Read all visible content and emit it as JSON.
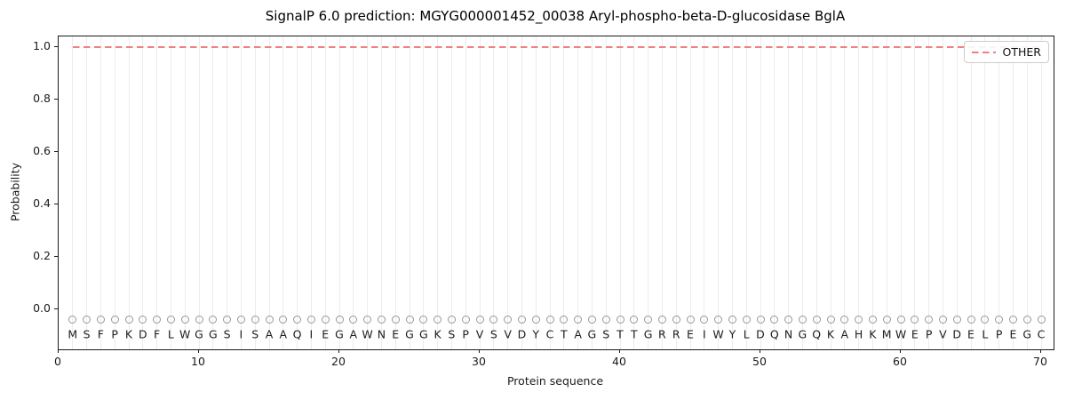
{
  "chart_data": {
    "type": "line",
    "title": "SignalP 6.0 prediction: MGYG000001452_00038 Aryl-phospho-beta-D-glucosidase BglA",
    "xlabel": "Protein sequence",
    "ylabel": "Probability",
    "xlim": [
      0,
      70.9
    ],
    "ylim": [
      -0.15,
      1.04
    ],
    "x_ticks": [
      {
        "v": 0,
        "label": "0"
      },
      {
        "v": 10,
        "label": "10"
      },
      {
        "v": 20,
        "label": "20"
      },
      {
        "v": 30,
        "label": "30"
      },
      {
        "v": 40,
        "label": "40"
      },
      {
        "v": 50,
        "label": "50"
      },
      {
        "v": 60,
        "label": "60"
      },
      {
        "v": 70,
        "label": "70"
      }
    ],
    "y_ticks": [
      {
        "v": 0.0,
        "label": "0.0"
      },
      {
        "v": 0.2,
        "label": "0.2"
      },
      {
        "v": 0.4,
        "label": "0.4"
      },
      {
        "v": 0.6,
        "label": "0.6"
      },
      {
        "v": 0.8,
        "label": "0.8"
      },
      {
        "v": 1.0,
        "label": "1.0"
      }
    ],
    "grid": {
      "vertical_line_per_residue": true,
      "color": "#ececec"
    },
    "sequence": "MSFPKDFLWGGSISAAQIEGAWNEGGKSPVSVDYCTAGSTTGRREIWYLDQNGQKAHKMWEPVDELPEGC",
    "series": [
      {
        "name": "OTHER",
        "color": "#f08080",
        "linestyle": "dashed",
        "x": [
          1,
          2,
          3,
          4,
          5,
          6,
          7,
          8,
          9,
          10,
          11,
          12,
          13,
          14,
          15,
          16,
          17,
          18,
          19,
          20,
          21,
          22,
          23,
          24,
          25,
          26,
          27,
          28,
          29,
          30,
          31,
          32,
          33,
          34,
          35,
          36,
          37,
          38,
          39,
          40,
          41,
          42,
          43,
          44,
          45,
          46,
          47,
          48,
          49,
          50,
          51,
          52,
          53,
          54,
          55,
          56,
          57,
          58,
          59,
          60,
          61,
          62,
          63,
          64,
          65,
          66,
          67,
          68,
          69,
          70
        ],
        "y": [
          1.0,
          1.0,
          1.0,
          1.0,
          1.0,
          1.0,
          1.0,
          1.0,
          1.0,
          1.0,
          1.0,
          1.0,
          1.0,
          1.0,
          1.0,
          1.0,
          1.0,
          1.0,
          1.0,
          1.0,
          1.0,
          1.0,
          1.0,
          1.0,
          1.0,
          1.0,
          1.0,
          1.0,
          1.0,
          1.0,
          1.0,
          1.0,
          1.0,
          1.0,
          1.0,
          1.0,
          1.0,
          1.0,
          1.0,
          1.0,
          1.0,
          1.0,
          1.0,
          1.0,
          1.0,
          1.0,
          1.0,
          1.0,
          1.0,
          1.0,
          1.0,
          1.0,
          1.0,
          1.0,
          1.0,
          1.0,
          1.0,
          1.0,
          1.0,
          1.0,
          1.0,
          1.0,
          1.0,
          1.0,
          1.0,
          1.0,
          1.0,
          1.0,
          1.0,
          1.0
        ]
      }
    ],
    "legend": {
      "position": "upper right",
      "entries": [
        {
          "label": "OTHER",
          "color": "#f08080",
          "linestyle": "dashed"
        }
      ]
    },
    "markers": {
      "shape": "open-circle",
      "color": "#979797",
      "y_value": -0.04,
      "one_per_residue": true
    }
  },
  "colors": {
    "background": "#ffffff",
    "axis": "#1a1a1a",
    "gridline": "#ececec",
    "series_other": "#f08080",
    "marker_outline": "#979797",
    "sequence_text": "#1c1c1c"
  }
}
